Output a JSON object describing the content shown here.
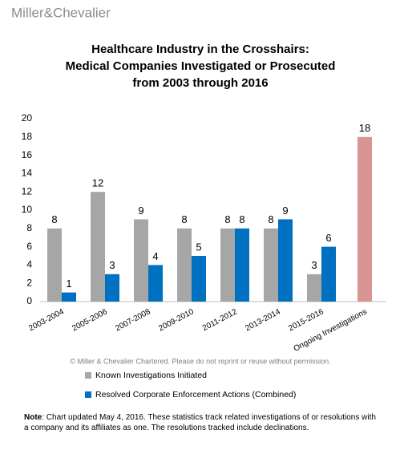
{
  "brand": "Miller&Chevalier",
  "chart_data": {
    "type": "bar",
    "title": [
      "Healthcare Industry in the Crosshairs:",
      "Medical Companies Investigated or Prosecuted",
      "from 2003 through 2016"
    ],
    "categories": [
      "2003-2004",
      "2005-2006",
      "2007-2008",
      "2009-2010",
      "2011-2012",
      "2013-2014",
      "2015-2016",
      "Ongoing Investigations"
    ],
    "series": [
      {
        "name": "Known Investigations Initiated",
        "color": "#a6a6a6",
        "values": [
          8,
          12,
          9,
          8,
          8,
          8,
          3,
          null
        ]
      },
      {
        "name": "Resolved Corporate Enforcement Actions (Combined)",
        "color": "#0070c0",
        "values": [
          1,
          3,
          4,
          5,
          8,
          9,
          6,
          null
        ]
      },
      {
        "color": "#d99594",
        "values": [
          null,
          null,
          null,
          null,
          null,
          null,
          null,
          18
        ]
      }
    ],
    "ylim": [
      0,
      20
    ],
    "yticks": [
      0,
      2,
      4,
      6,
      8,
      10,
      12,
      14,
      16,
      18,
      20
    ],
    "grid": false,
    "copyright": "© Miller & Chevalier Chartered. Please do not reprint or reuse without permission."
  },
  "note": {
    "label": "Note",
    "text": ": Chart updated May 4, 2016. These statistics track related investigations of or resolutions with a company and its affiliates as one. The resolutions tracked include declinations."
  }
}
